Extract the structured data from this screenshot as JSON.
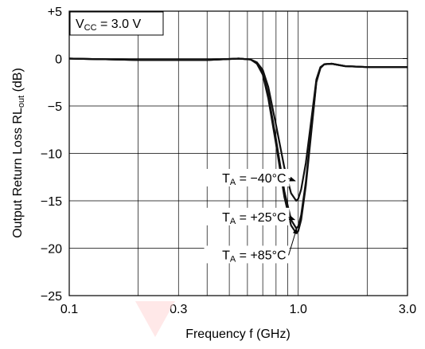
{
  "chart_data": {
    "type": "line",
    "xscale": "log",
    "xlim": [
      0.1,
      3.0
    ],
    "ylim": [
      -25,
      5
    ],
    "xlabel": "Frequency  f  (GHz)",
    "ylabel": "Output Return Loss  RL",
    "ylabel_sub": "out",
    "ylabel_unit": " (dB)",
    "xticks": [
      {
        "value": 0.1,
        "label": "0.1"
      },
      {
        "value": 0.3,
        "label": "0.3"
      },
      {
        "value": 1.0,
        "label": "1.0"
      },
      {
        "value": 3.0,
        "label": "3.0"
      }
    ],
    "yticks": [
      {
        "value": 5,
        "label": "+5"
      },
      {
        "value": 0,
        "label": "0"
      },
      {
        "value": -5,
        "label": "−5"
      },
      {
        "value": -10,
        "label": "−10"
      },
      {
        "value": -15,
        "label": "−15"
      },
      {
        "value": -20,
        "label": "−20"
      },
      {
        "value": -25,
        "label": "−25"
      }
    ],
    "grid": true,
    "condition": {
      "main": "V",
      "sub": "CC",
      "rest": " = 3.0 V"
    },
    "series": [
      {
        "name": "TA = −40°C",
        "label_main": "T",
        "label_sub": "A",
        "label_rest": " = −40°C",
        "label_at": [
          0.9,
          -12.9
        ],
        "arrow_to": [
          0.97,
          -12.9
        ],
        "x": [
          0.1,
          0.2,
          0.4,
          0.55,
          0.62,
          0.66,
          0.7,
          0.74,
          0.8,
          0.87,
          0.93,
          0.98,
          1.0,
          1.03,
          1.08,
          1.14,
          1.2,
          1.25,
          1.3,
          1.4,
          1.6,
          2.0,
          3.0
        ],
        "y": [
          0,
          -0.15,
          -0.15,
          0,
          -0.1,
          -0.4,
          -1.2,
          -3.0,
          -7.0,
          -11.5,
          -14.2,
          -15.0,
          -14.8,
          -13.8,
          -11.0,
          -6.5,
          -2.2,
          -0.9,
          -0.6,
          -0.55,
          -0.8,
          -0.9,
          -0.9
        ]
      },
      {
        "name": "TA = +25°C",
        "label_main": "T",
        "label_sub": "A",
        "label_rest": " = +25°C",
        "label_at": [
          0.9,
          -17.0
        ],
        "arrow_to": [
          0.965,
          -17.0
        ],
        "x": [
          0.1,
          0.2,
          0.4,
          0.55,
          0.62,
          0.66,
          0.7,
          0.74,
          0.8,
          0.87,
          0.93,
          0.98,
          1.0,
          1.03,
          1.08,
          1.14,
          1.2,
          1.25,
          1.3,
          1.4,
          1.6,
          2.0,
          3.0
        ],
        "y": [
          0,
          -0.15,
          -0.15,
          0,
          -0.1,
          -0.5,
          -1.5,
          -3.8,
          -8.5,
          -14.0,
          -17.0,
          -17.9,
          -17.7,
          -16.5,
          -13.0,
          -7.5,
          -2.4,
          -1.0,
          -0.6,
          -0.55,
          -0.8,
          -0.9,
          -0.9
        ]
      },
      {
        "name": "TA = +85°C",
        "label_main": "T",
        "label_sub": "A",
        "label_rest": " = +85°C",
        "label_at": [
          0.9,
          -21.0
        ],
        "arrow_to": [
          0.985,
          -17.9
        ],
        "x": [
          0.1,
          0.2,
          0.4,
          0.55,
          0.62,
          0.66,
          0.7,
          0.74,
          0.8,
          0.87,
          0.93,
          0.98,
          1.0,
          1.03,
          1.08,
          1.14,
          1.2,
          1.25,
          1.3,
          1.4,
          1.6,
          2.0,
          3.0
        ],
        "y": [
          0,
          -0.15,
          -0.15,
          0,
          -0.1,
          -0.55,
          -1.7,
          -4.2,
          -9.0,
          -14.6,
          -17.6,
          -18.4,
          -18.2,
          -17.0,
          -13.4,
          -7.8,
          -2.5,
          -1.0,
          -0.6,
          -0.55,
          -0.8,
          -0.9,
          -0.9
        ]
      }
    ]
  }
}
